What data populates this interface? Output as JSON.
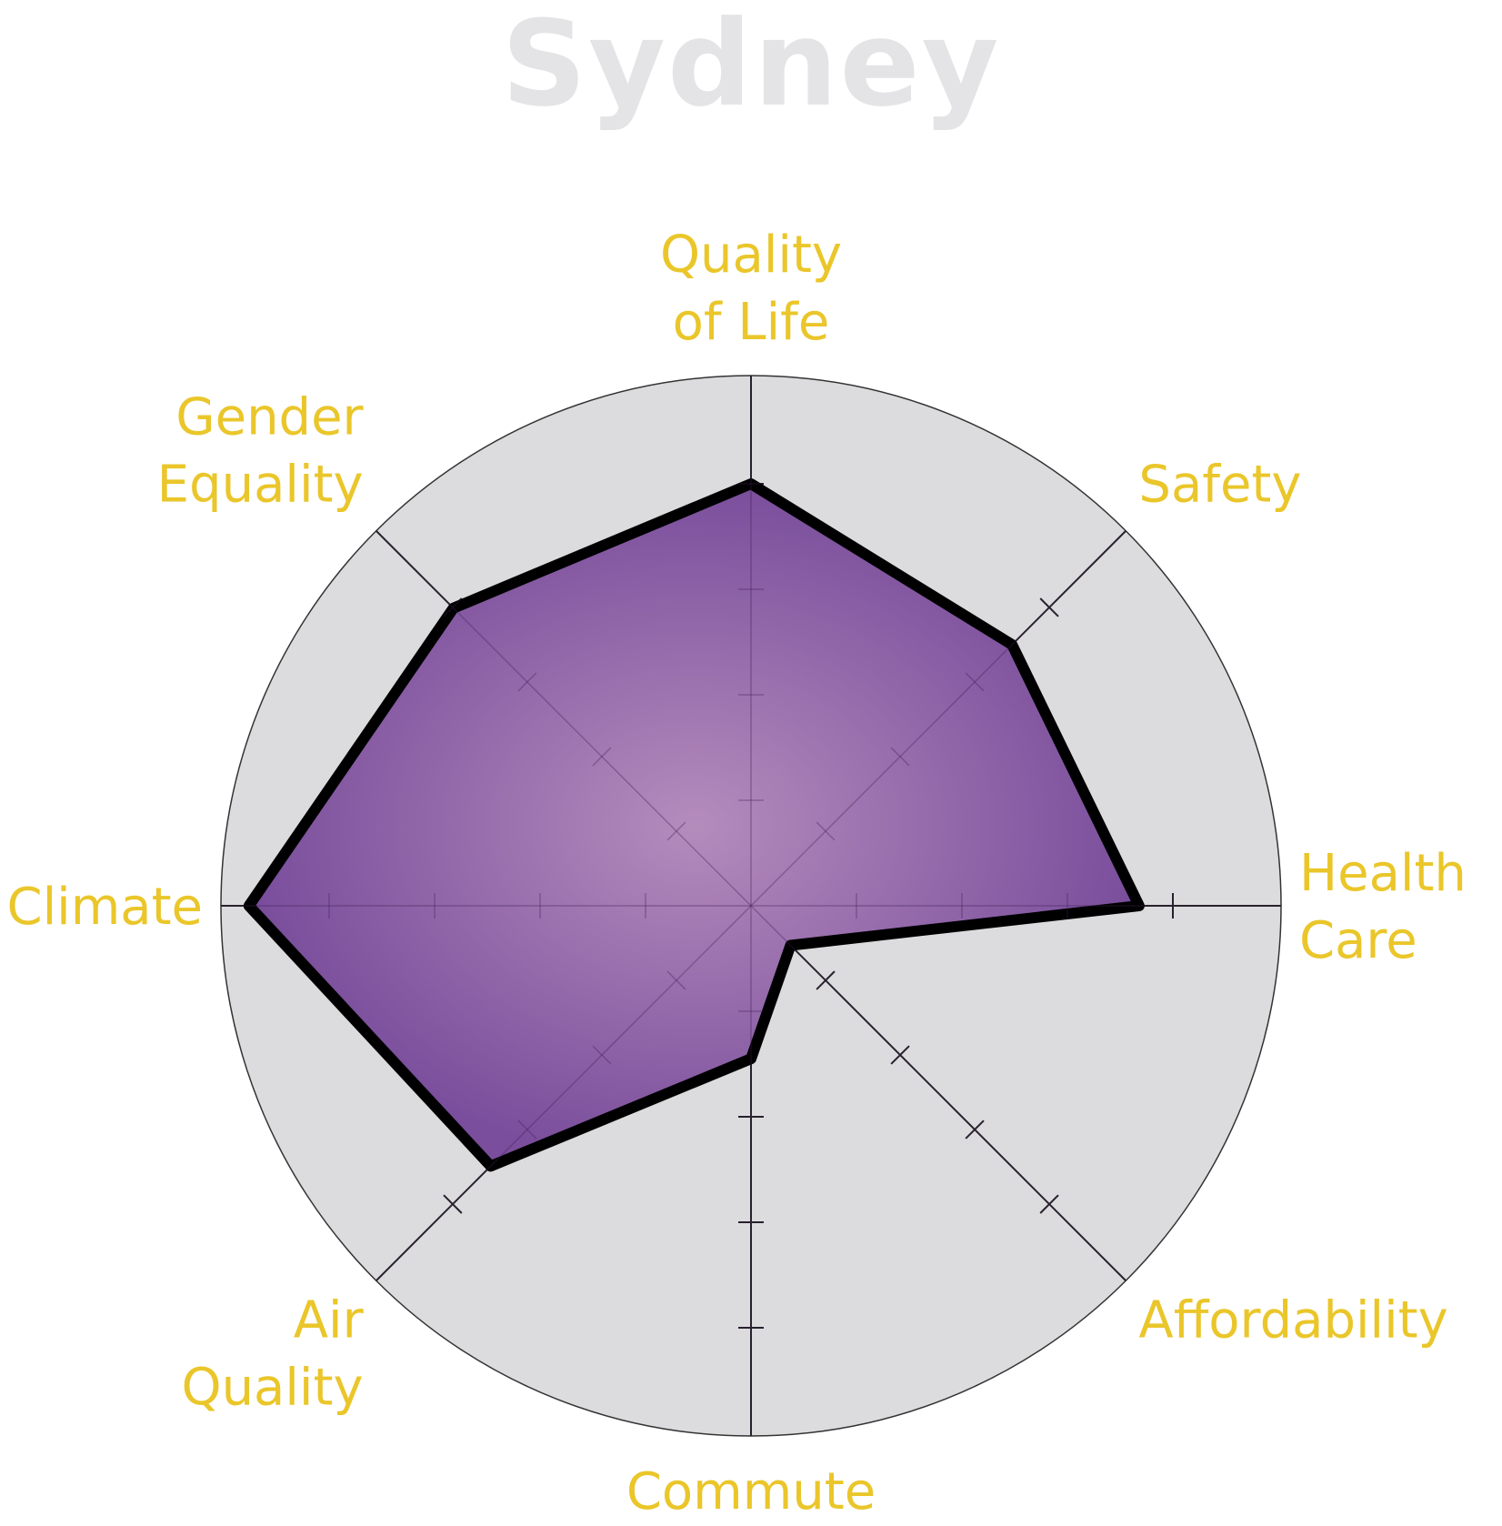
{
  "chart_data": {
    "type": "radar",
    "title": "Sydney",
    "scale_max": 5,
    "ticks": [
      1,
      2,
      3,
      4
    ],
    "axes": [
      {
        "label": [
          "Quality",
          "of Life"
        ],
        "value": 4.0
      },
      {
        "label": [
          "Safety"
        ],
        "value": 3.5
      },
      {
        "label": [
          "Health",
          "Care"
        ],
        "value": 3.68
      },
      {
        "label": [
          "Affordability"
        ],
        "value": 0.53
      },
      {
        "label": [
          "Commute"
        ],
        "value": 1.45
      },
      {
        "label": [
          "Air",
          "Quality"
        ],
        "value": 3.49
      },
      {
        "label": [
          "Climate"
        ],
        "value": 4.76
      },
      {
        "label": [
          "Gender",
          "Equality"
        ],
        "value": 3.99
      }
    ]
  },
  "colors": {
    "background_disc": "#dcdcde",
    "fill_center": "#b48cbc",
    "fill_edge": "#7a4e9c",
    "outline": "#000000",
    "label": "#eac62a",
    "title": "#e4e4e6"
  }
}
